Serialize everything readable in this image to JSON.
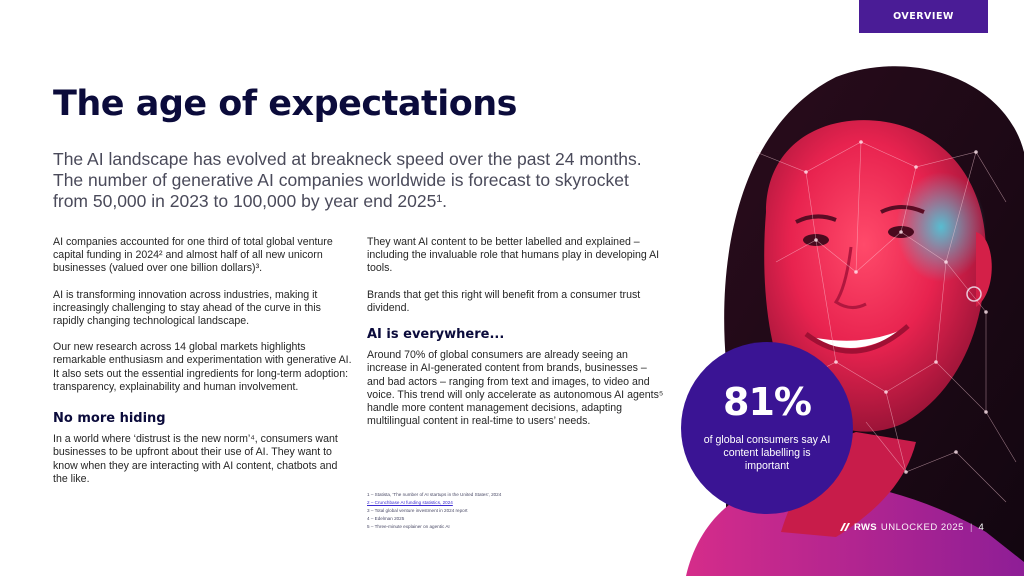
{
  "tag": "OVERVIEW",
  "title": "The age of expectations",
  "lead": "The AI landscape has evolved at breakneck speed over the past 24 months. The number of generative AI companies worldwide is forecast to skyrocket from 50,000 in 2023 to 100,000 by year end 2025¹.",
  "col1": {
    "p1": "AI companies accounted for one third of total global venture capital funding in 2024² and almost half of all new unicorn businesses (valued over one billion dollars)³.",
    "p2": "AI is transforming innovation across industries, making it increasingly challenging to stay ahead of the curve in this rapidly changing technological landscape.",
    "p3": "Our new research across 14 global markets highlights remarkable enthusiasm and experimentation with generative AI. It also sets out the essential ingredients for long-term adoption: transparency, explainability and human involvement.",
    "heading": "No more hiding",
    "p4": "In a world where ‘distrust is the new norm’⁴, consumers want businesses to be upfront about their use of AI. They want to know when they are interacting with AI content, chatbots and the like."
  },
  "col2": {
    "p1": "They want AI content to be better labelled and explained – including the invaluable role that humans play in developing AI tools.",
    "p2": "Brands that get this right will benefit from a consumer trust dividend.",
    "heading": "AI is everywhere...",
    "p3": "Around 70% of global consumers are already seeing an increase in AI-generated content from brands, businesses – and bad actors – ranging from text and images, to video and voice. This trend will only accelerate as autonomous AI agents⁵ handle more content management decisions, adapting multilingual content in real-time to users’ needs."
  },
  "footnotes": [
    "1 – Statista, 'The number of AI startups in the United States', 2024",
    "2 – Crunchbase AI funding statistics, 2024",
    "3 – Total global venture investment in 2024 report",
    "4 – Edelman 2025",
    "5 – Three-minute explainer on agentic AI"
  ],
  "stat": {
    "value": "81%",
    "caption": "of global consumers say AI content labelling is important"
  },
  "footer": {
    "brand": "RWS",
    "event": "UNLOCKED 2025",
    "page": "4"
  },
  "colors": {
    "accent": "#4a1c96",
    "title": "#0b0b3b",
    "stat_circle": "#3a1494"
  }
}
